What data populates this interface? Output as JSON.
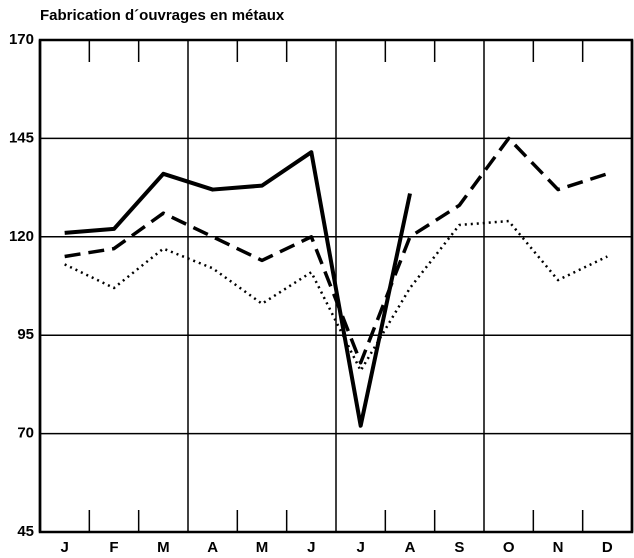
{
  "chart_data": {
    "type": "line",
    "title": "Fabrication d´ouvrages en métaux",
    "categories": [
      "J",
      "F",
      "M",
      "A",
      "M",
      "J",
      "J",
      "A",
      "S",
      "O",
      "N",
      "D"
    ],
    "series": [
      {
        "color": "#000000",
        "dash": "solid",
        "values": [
          121,
          122,
          136,
          132,
          133,
          141.5,
          72,
          131,
          null,
          null,
          null,
          null
        ]
      },
      {
        "color": "#000000",
        "dash": "dashed",
        "values": [
          115,
          117,
          126,
          120,
          114,
          120,
          88,
          120,
          128,
          145,
          132,
          136
        ]
      },
      {
        "color": "#000000",
        "dash": "dotted",
        "values": [
          113,
          107,
          117,
          112,
          103,
          111,
          86,
          107,
          123,
          124,
          109,
          115
        ]
      }
    ],
    "ylim": [
      45,
      170
    ],
    "yticks": [
      45,
      70,
      95,
      120,
      145,
      170
    ],
    "grid": true
  }
}
